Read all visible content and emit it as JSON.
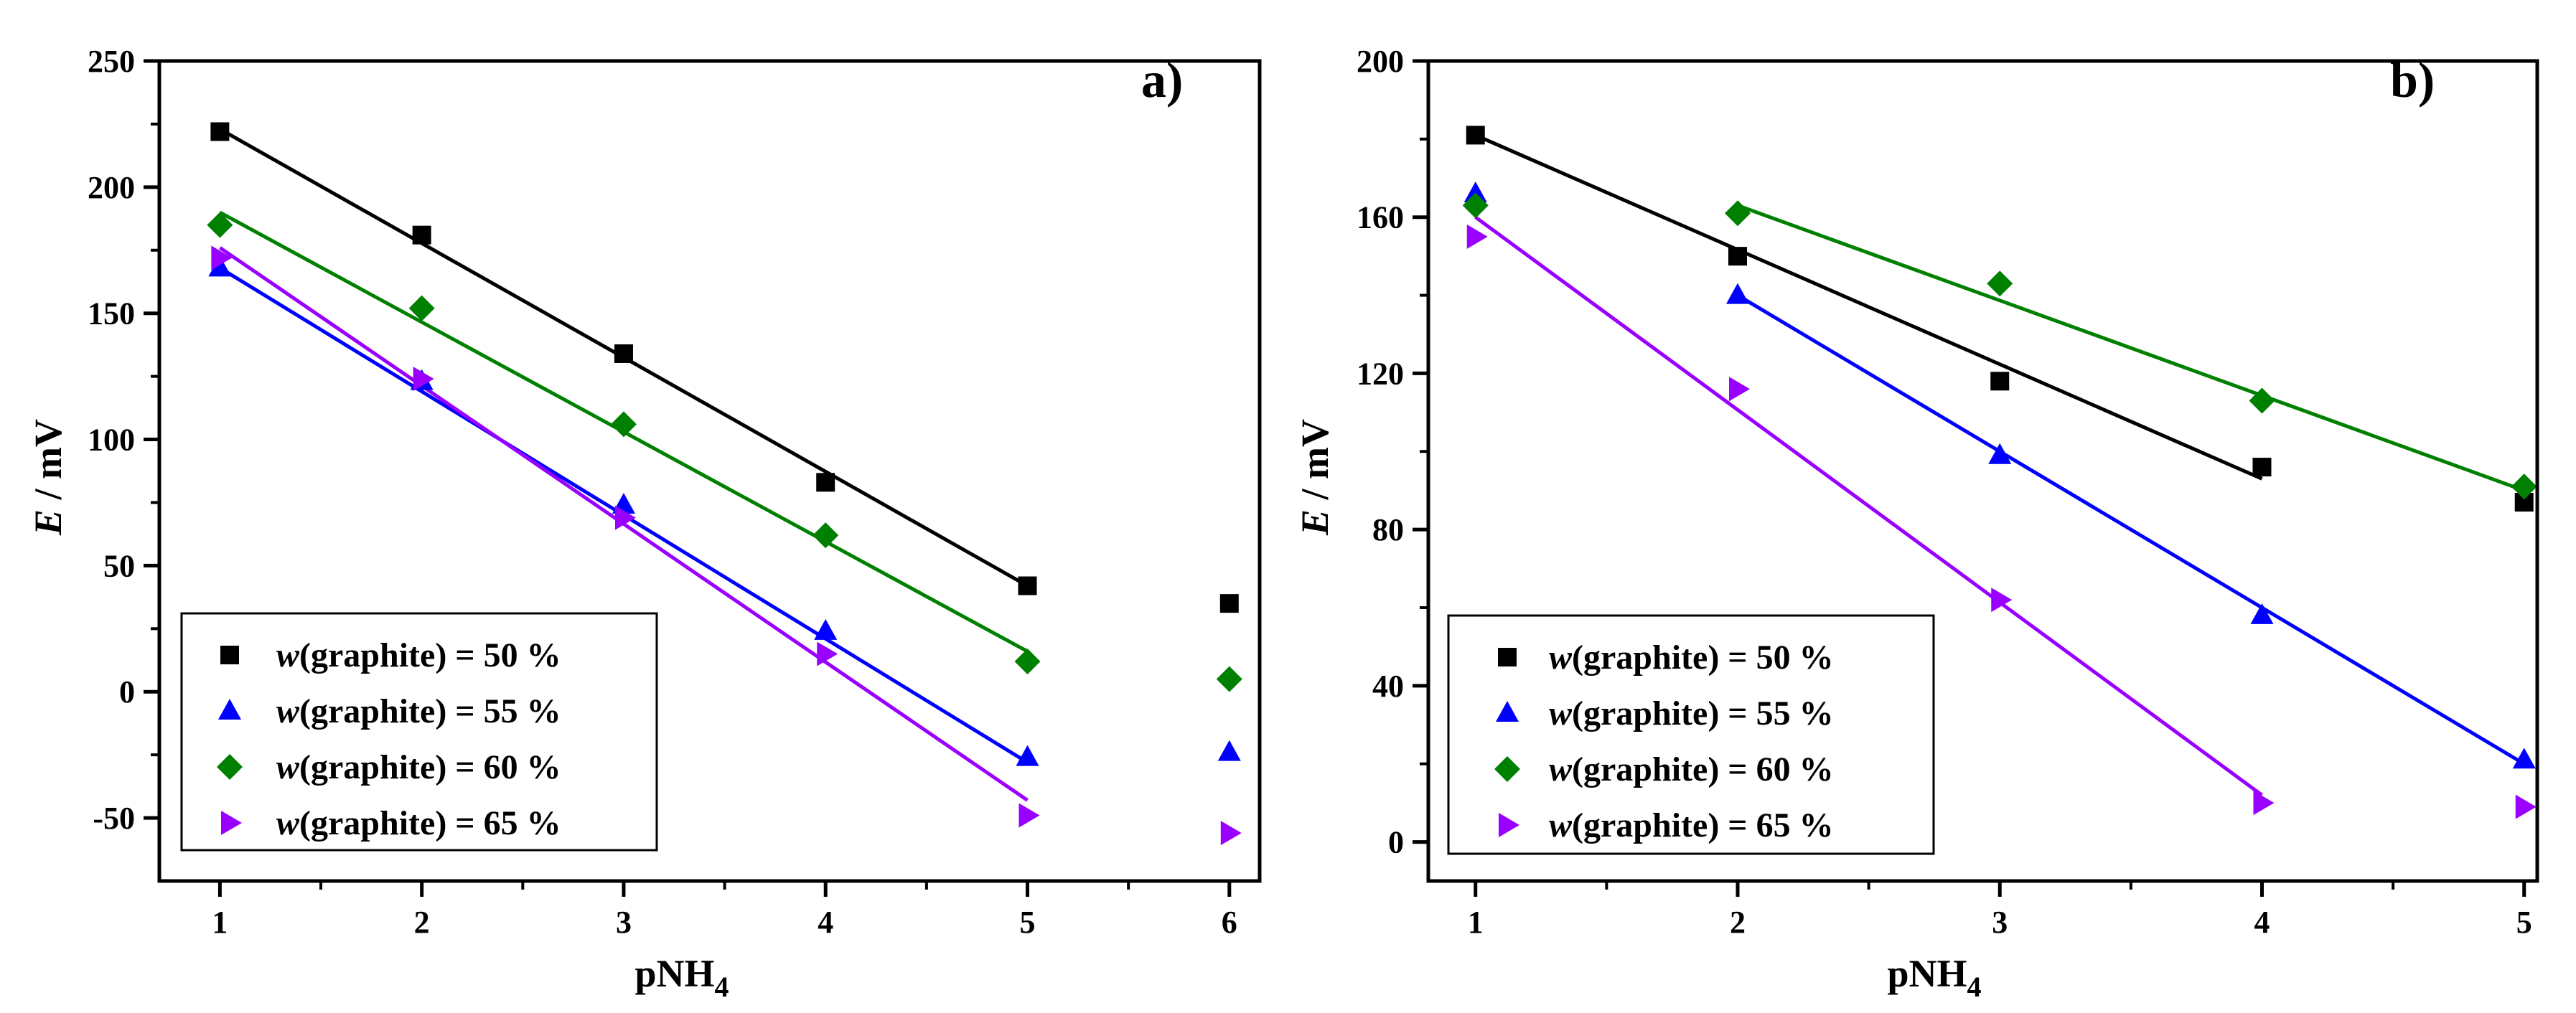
{
  "chart_data": [
    {
      "type": "scatter",
      "panel_label": "a)",
      "xlabel_main": "pNH",
      "xlabel_sub": "4",
      "ylabel_italic": "E",
      "ylabel_rest": " / mV",
      "xlim": [
        0.7,
        6.15
      ],
      "ylim": [
        -75,
        250
      ],
      "xticks": [
        1,
        2,
        3,
        4,
        5,
        6
      ],
      "xtick_labels": [
        "1",
        "2",
        "3",
        "4",
        "5",
        "6"
      ],
      "yticks": [
        -50,
        0,
        50,
        100,
        150,
        200,
        250
      ],
      "ytick_labels": [
        "-50",
        "0",
        "50",
        "100",
        "150",
        "200",
        "250"
      ],
      "grid": false,
      "legend_position": "bottom-left",
      "series": [
        {
          "name_prefix": "w",
          "name_rest": "(graphite) = 50 %",
          "color": "#000000",
          "marker": "square",
          "x": [
            1,
            2,
            3,
            4,
            5,
            6
          ],
          "y": [
            222,
            181,
            134,
            83,
            42,
            35
          ],
          "fit": [
            [
              1,
              223
            ],
            [
              5,
              42
            ]
          ]
        },
        {
          "name_prefix": "w",
          "name_rest": "(graphite) = 55 %",
          "color": "#0000ff",
          "marker": "triangle-up",
          "x": [
            1,
            2,
            3,
            4,
            5,
            6
          ],
          "y": [
            168,
            123,
            74,
            24,
            -26,
            -24
          ],
          "fit": [
            [
              1,
              168
            ],
            [
              5,
              -28
            ]
          ]
        },
        {
          "name_prefix": "w",
          "name_rest": "(graphite) = 60 %",
          "color": "#008000",
          "marker": "diamond",
          "x": [
            1,
            2,
            3,
            4,
            5,
            6
          ],
          "y": [
            185,
            152,
            106,
            62,
            12,
            5
          ],
          "fit": [
            [
              1,
              190
            ],
            [
              5,
              16
            ]
          ]
        },
        {
          "name_prefix": "w",
          "name_rest": "(graphite) = 65 %",
          "color": "#9900ff",
          "marker": "triangle-right",
          "x": [
            1,
            2,
            3,
            4,
            5,
            6
          ],
          "y": [
            172,
            124,
            69,
            15,
            -49,
            -56
          ],
          "fit": [
            [
              1,
              176
            ],
            [
              5,
              -43
            ]
          ]
        }
      ]
    },
    {
      "type": "scatter",
      "panel_label": "b)",
      "xlabel_main": "pNH",
      "xlabel_sub": "4",
      "ylabel_italic": "E",
      "ylabel_rest": " / mV",
      "xlim": [
        0.82,
        5.05
      ],
      "ylim": [
        -10,
        200
      ],
      "xticks": [
        1,
        2,
        3,
        4,
        5
      ],
      "xtick_labels": [
        "1",
        "2",
        "3",
        "4",
        "5"
      ],
      "yticks": [
        0,
        40,
        80,
        120,
        160,
        200
      ],
      "ytick_labels": [
        "0",
        "40",
        "80",
        "120",
        "160",
        "200"
      ],
      "grid": false,
      "legend_position": "bottom-left",
      "series": [
        {
          "name_prefix": "w",
          "name_rest": "(graphite) = 50 %",
          "color": "#000000",
          "marker": "square",
          "x": [
            1,
            2,
            3,
            4,
            5
          ],
          "y": [
            181,
            150,
            118,
            96,
            87
          ],
          "fit": [
            [
              1,
              181
            ],
            [
              4,
              93
            ]
          ]
        },
        {
          "name_prefix": "w",
          "name_rest": "(graphite) = 55 %",
          "color": "#0000ff",
          "marker": "triangle-up",
          "x": [
            1,
            2,
            3,
            4,
            5
          ],
          "y": [
            166,
            140,
            99,
            58,
            21
          ],
          "fit": [
            [
              2,
              140
            ],
            [
              5,
              20
            ]
          ]
        },
        {
          "name_prefix": "w",
          "name_rest": "(graphite) = 60 %",
          "color": "#008000",
          "marker": "diamond",
          "x": [
            1,
            2,
            3,
            4,
            5
          ],
          "y": [
            163,
            161,
            143,
            113,
            91
          ],
          "fit": [
            [
              2,
              163
            ],
            [
              5,
              90
            ]
          ]
        },
        {
          "name_prefix": "w",
          "name_rest": "(graphite) = 65 %",
          "color": "#9900ff",
          "marker": "triangle-right",
          "x": [
            1,
            2,
            3,
            4,
            5
          ],
          "y": [
            155,
            116,
            62,
            10,
            9
          ],
          "fit": [
            [
              1,
              160
            ],
            [
              4,
              12
            ]
          ]
        }
      ]
    }
  ]
}
